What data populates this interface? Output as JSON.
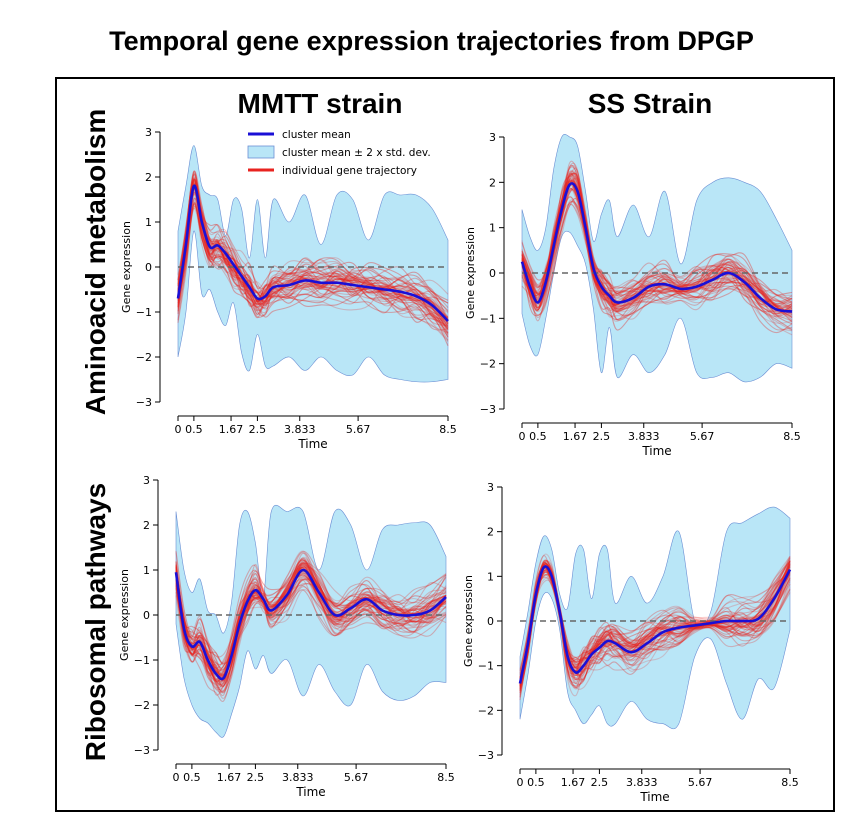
{
  "title": "Temporal gene expression trajectories from DPGP",
  "column_headers": [
    "MMTT strain",
    "SS Strain"
  ],
  "row_headers": [
    "Aminoacid metabolism",
    "Ribosomal pathways"
  ],
  "legend": {
    "cluster_mean": "cluster mean",
    "band": "cluster mean ± 2 x std. dev.",
    "individual": "individual gene trajectory"
  },
  "colors": {
    "cluster_mean": "#1a0fd6",
    "band_fill": "#b9e6f7",
    "band_edge": "#6b8fd4",
    "individual": "#e8231f",
    "zero_line": "#666666"
  },
  "chart_data": [
    {
      "type": "line",
      "panel": "MMTT strain / Aminoacid metabolism",
      "xlabel": "Time",
      "ylabel": "Gene expression",
      "x_ticks": [
        0,
        0.5,
        1.67,
        2.5,
        3.833,
        5.67,
        8.5
      ],
      "x_tick_labels": [
        "0",
        "0.5",
        "1.67",
        "2.5",
        "3.833",
        "5.67",
        "8.5"
      ],
      "y_ticks": [
        -3,
        -2,
        -1,
        0,
        1,
        2,
        3
      ],
      "y_tick_labels": [
        "−3",
        "−2",
        "−1",
        "0",
        "1",
        "2",
        "3"
      ],
      "xlim": [
        0,
        8.5
      ],
      "ylim": [
        -3,
        3
      ],
      "show_legend": true,
      "series": [
        {
          "name": "cluster mean",
          "x": [
            0,
            0.25,
            0.5,
            0.75,
            1.0,
            1.25,
            1.5,
            1.75,
            2.0,
            2.25,
            2.5,
            2.75,
            3.0,
            3.5,
            4.0,
            4.5,
            5.0,
            5.5,
            6.0,
            6.5,
            7.0,
            7.5,
            8.0,
            8.5
          ],
          "y": [
            -0.7,
            0.5,
            1.8,
            1.0,
            0.45,
            0.48,
            0.3,
            0.05,
            -0.2,
            -0.45,
            -0.7,
            -0.65,
            -0.45,
            -0.4,
            -0.3,
            -0.35,
            -0.35,
            -0.4,
            -0.45,
            -0.5,
            -0.55,
            -0.65,
            -0.85,
            -1.2
          ]
        },
        {
          "name": "cluster mean ± 2 x std. dev. (upper)",
          "x": [
            0,
            0.25,
            0.5,
            0.75,
            1.0,
            1.25,
            1.5,
            1.75,
            2.0,
            2.25,
            2.5,
            2.75,
            3.0,
            3.5,
            4.0,
            4.5,
            5.0,
            5.5,
            6.0,
            6.5,
            7.0,
            7.5,
            8.0,
            8.5
          ],
          "y": [
            0.8,
            1.8,
            2.7,
            1.8,
            1.6,
            1.5,
            0.7,
            1.5,
            1.3,
            0.2,
            1.5,
            0.2,
            1.5,
            1.0,
            1.6,
            0.5,
            1.6,
            1.5,
            0.6,
            1.6,
            1.6,
            1.6,
            1.3,
            0.6
          ]
        },
        {
          "name": "cluster mean ± 2 x std. dev. (lower)",
          "x": [
            0,
            0.25,
            0.5,
            0.75,
            1.0,
            1.25,
            1.5,
            1.75,
            2.0,
            2.25,
            2.5,
            2.75,
            3.0,
            3.5,
            4.0,
            4.5,
            5.0,
            5.5,
            6.0,
            6.5,
            7.0,
            7.5,
            8.0,
            8.5
          ],
          "y": [
            -2.0,
            -1.0,
            0.8,
            -0.6,
            -0.5,
            -1.0,
            -1.3,
            -0.8,
            -1.9,
            -2.3,
            -1.5,
            -2.2,
            -2.2,
            -2.0,
            -2.3,
            -2.0,
            -2.3,
            -2.4,
            -2.0,
            -2.4,
            -2.5,
            -2.55,
            -2.55,
            -2.5
          ]
        }
      ]
    },
    {
      "type": "line",
      "panel": "SS Strain / Aminoacid metabolism",
      "xlabel": "Time",
      "ylabel": "Gene expression",
      "x_ticks": [
        0,
        0.5,
        1.67,
        2.5,
        3.833,
        5.67,
        8.5
      ],
      "x_tick_labels": [
        "0",
        "0.5",
        "1.67",
        "2.5",
        "3.833",
        "5.67",
        "8.5"
      ],
      "y_ticks": [
        -3,
        -2,
        -1,
        0,
        1,
        2,
        3
      ],
      "y_tick_labels": [
        "−3",
        "−2",
        "−1",
        "0",
        "1",
        "2",
        "3"
      ],
      "xlim": [
        0,
        8.5
      ],
      "ylim": [
        -3,
        3
      ],
      "show_legend": false,
      "series": [
        {
          "name": "cluster mean",
          "x": [
            0,
            0.25,
            0.5,
            0.75,
            1.0,
            1.25,
            1.5,
            1.75,
            2.0,
            2.25,
            2.5,
            2.75,
            3.0,
            3.5,
            4.0,
            4.5,
            5.0,
            5.5,
            6.0,
            6.5,
            7.0,
            7.5,
            8.0,
            8.5
          ],
          "y": [
            0.25,
            -0.3,
            -0.65,
            -0.2,
            0.6,
            1.4,
            1.95,
            1.8,
            1.0,
            0.1,
            -0.3,
            -0.5,
            -0.65,
            -0.55,
            -0.3,
            -0.25,
            -0.35,
            -0.3,
            -0.15,
            0.0,
            -0.2,
            -0.55,
            -0.8,
            -0.85
          ]
        },
        {
          "name": "cluster mean ± 2 x std. dev. (upper)",
          "x": [
            0,
            0.25,
            0.5,
            0.75,
            1.0,
            1.25,
            1.5,
            1.75,
            2.0,
            2.25,
            2.5,
            2.75,
            3.0,
            3.5,
            4.0,
            4.5,
            5.0,
            5.5,
            6.0,
            6.5,
            7.0,
            7.5,
            8.0,
            8.5
          ],
          "y": [
            1.4,
            0.8,
            0.5,
            1.0,
            2.3,
            3.0,
            3.0,
            2.8,
            1.8,
            0.7,
            1.3,
            1.6,
            0.8,
            1.5,
            0.8,
            1.8,
            0.2,
            1.6,
            2.0,
            2.1,
            2.0,
            1.8,
            1.2,
            0.5
          ]
        },
        {
          "name": "cluster mean ± 2 x std. dev. (lower)",
          "x": [
            0,
            0.25,
            0.5,
            0.75,
            1.0,
            1.25,
            1.5,
            1.75,
            2.0,
            2.25,
            2.5,
            2.75,
            3.0,
            3.5,
            4.0,
            4.5,
            5.0,
            5.5,
            6.0,
            6.5,
            7.0,
            7.5,
            8.0,
            8.5
          ],
          "y": [
            -0.9,
            -1.6,
            -1.8,
            -1.0,
            0.0,
            0.8,
            0.9,
            0.6,
            0.2,
            -0.8,
            -2.2,
            -1.2,
            -2.3,
            -1.8,
            -2.2,
            -1.8,
            -1.0,
            -2.2,
            -2.3,
            -2.2,
            -2.4,
            -2.3,
            -2.0,
            -2.1
          ]
        }
      ]
    },
    {
      "type": "line",
      "panel": "MMTT strain / Ribosomal pathways",
      "xlabel": "Time",
      "ylabel": "Gene expression",
      "x_ticks": [
        0,
        0.5,
        1.67,
        2.5,
        3.833,
        5.67,
        8.5
      ],
      "x_tick_labels": [
        "0",
        "0.5",
        "1.67",
        "2.5",
        "3.833",
        "5.67",
        "8.5"
      ],
      "y_ticks": [
        -3,
        -2,
        -1,
        0,
        1,
        2,
        3
      ],
      "y_tick_labels": [
        "−3",
        "−2",
        "−1",
        "0",
        "1",
        "2",
        "3"
      ],
      "xlim": [
        0,
        8.5
      ],
      "ylim": [
        -3,
        3
      ],
      "show_legend": false,
      "series": [
        {
          "name": "cluster mean",
          "x": [
            0,
            0.25,
            0.5,
            0.75,
            1.0,
            1.25,
            1.5,
            1.75,
            2.0,
            2.25,
            2.5,
            2.75,
            3.0,
            3.5,
            4.0,
            4.5,
            5.0,
            5.5,
            6.0,
            6.5,
            7.0,
            7.5,
            8.0,
            8.5
          ],
          "y": [
            0.95,
            -0.3,
            -0.7,
            -0.6,
            -1.0,
            -1.3,
            -1.4,
            -0.9,
            -0.2,
            0.3,
            0.55,
            0.35,
            0.1,
            0.45,
            1.0,
            0.5,
            0.0,
            0.15,
            0.35,
            0.1,
            0.0,
            0.0,
            0.1,
            0.4
          ]
        },
        {
          "name": "cluster mean ± 2 x std. dev. (upper)",
          "x": [
            0,
            0.25,
            0.5,
            0.75,
            1.0,
            1.25,
            1.5,
            1.75,
            2.0,
            2.25,
            2.5,
            2.75,
            3.0,
            3.5,
            4.0,
            4.5,
            5.0,
            5.5,
            6.0,
            6.5,
            7.0,
            7.5,
            8.0,
            8.5
          ],
          "y": [
            2.3,
            1.0,
            0.5,
            0.8,
            0.1,
            0.0,
            -0.4,
            0.3,
            2.0,
            2.3,
            1.6,
            0.4,
            2.3,
            2.3,
            2.3,
            1.0,
            2.3,
            2.0,
            1.0,
            1.9,
            2.0,
            2.05,
            2.0,
            1.3
          ]
        },
        {
          "name": "cluster mean ± 2 x std. dev. (lower)",
          "x": [
            0,
            0.25,
            0.5,
            0.75,
            1.0,
            1.25,
            1.5,
            1.75,
            2.0,
            2.25,
            2.5,
            2.75,
            3.0,
            3.5,
            4.0,
            4.5,
            5.0,
            5.5,
            6.0,
            6.5,
            7.0,
            7.5,
            8.0,
            8.5
          ],
          "y": [
            -0.2,
            -1.4,
            -2.0,
            -2.3,
            -2.4,
            -2.6,
            -2.7,
            -2.2,
            -1.6,
            -0.8,
            -1.2,
            -0.9,
            -1.3,
            -1.0,
            -1.8,
            -1.1,
            -1.7,
            -2.0,
            -1.1,
            -1.7,
            -1.9,
            -1.8,
            -1.5,
            -1.5
          ]
        }
      ]
    },
    {
      "type": "line",
      "panel": "SS Strain / Ribosomal pathways",
      "xlabel": "Time",
      "ylabel": "Gene expression",
      "x_ticks": [
        0,
        0.5,
        1.67,
        2.5,
        3.833,
        5.67,
        8.5
      ],
      "x_tick_labels": [
        "0",
        "0.5",
        "1.67",
        "2.5",
        "3.833",
        "5.67",
        "8.5"
      ],
      "y_ticks": [
        -3,
        -2,
        -1,
        0,
        1,
        2,
        3
      ],
      "y_tick_labels": [
        "−3",
        "−2",
        "−1",
        "0",
        "1",
        "2",
        "3"
      ],
      "xlim": [
        0,
        8.5
      ],
      "ylim": [
        -3,
        3
      ],
      "show_legend": false,
      "series": [
        {
          "name": "cluster mean",
          "x": [
            0,
            0.25,
            0.5,
            0.75,
            1.0,
            1.25,
            1.5,
            1.75,
            2.0,
            2.25,
            2.5,
            2.75,
            3.0,
            3.5,
            4.0,
            4.5,
            5.0,
            5.5,
            6.0,
            6.5,
            7.0,
            7.5,
            8.0,
            8.5
          ],
          "y": [
            -1.4,
            -0.5,
            0.6,
            1.2,
            1.0,
            0.2,
            -0.8,
            -1.15,
            -1.0,
            -0.75,
            -0.6,
            -0.45,
            -0.5,
            -0.7,
            -0.5,
            -0.25,
            -0.15,
            -0.1,
            -0.05,
            0.0,
            0.0,
            0.05,
            0.5,
            1.15
          ]
        },
        {
          "name": "cluster mean ± 2 x std. dev. (upper)",
          "x": [
            0,
            0.25,
            0.5,
            0.75,
            1.0,
            1.25,
            1.5,
            1.75,
            2.0,
            2.25,
            2.5,
            2.75,
            3.0,
            3.5,
            4.0,
            4.5,
            5.0,
            5.5,
            6.0,
            6.5,
            7.0,
            7.5,
            8.0,
            8.5
          ],
          "y": [
            -0.8,
            0.2,
            1.3,
            1.9,
            1.6,
            0.6,
            0.3,
            1.5,
            1.6,
            0.5,
            1.5,
            1.6,
            0.4,
            1.0,
            0.4,
            1.0,
            2.0,
            0.0,
            0.2,
            2.0,
            2.2,
            2.4,
            2.55,
            2.3
          ]
        },
        {
          "name": "cluster mean ± 2 x std. dev. (lower)",
          "x": [
            0,
            0.25,
            0.5,
            0.75,
            1.0,
            1.25,
            1.5,
            1.75,
            2.0,
            2.25,
            2.5,
            2.75,
            3.0,
            3.5,
            4.0,
            4.5,
            5.0,
            5.5,
            6.0,
            6.5,
            7.0,
            7.5,
            8.0,
            8.5
          ],
          "y": [
            -2.2,
            -1.2,
            0.0,
            0.6,
            0.5,
            -0.2,
            -1.6,
            -2.0,
            -2.3,
            -2.1,
            -1.9,
            -2.3,
            -2.3,
            -1.8,
            -2.2,
            -2.3,
            -2.3,
            -0.8,
            -0.4,
            -1.4,
            -2.2,
            -1.3,
            -1.5,
            -0.2
          ]
        }
      ]
    }
  ]
}
